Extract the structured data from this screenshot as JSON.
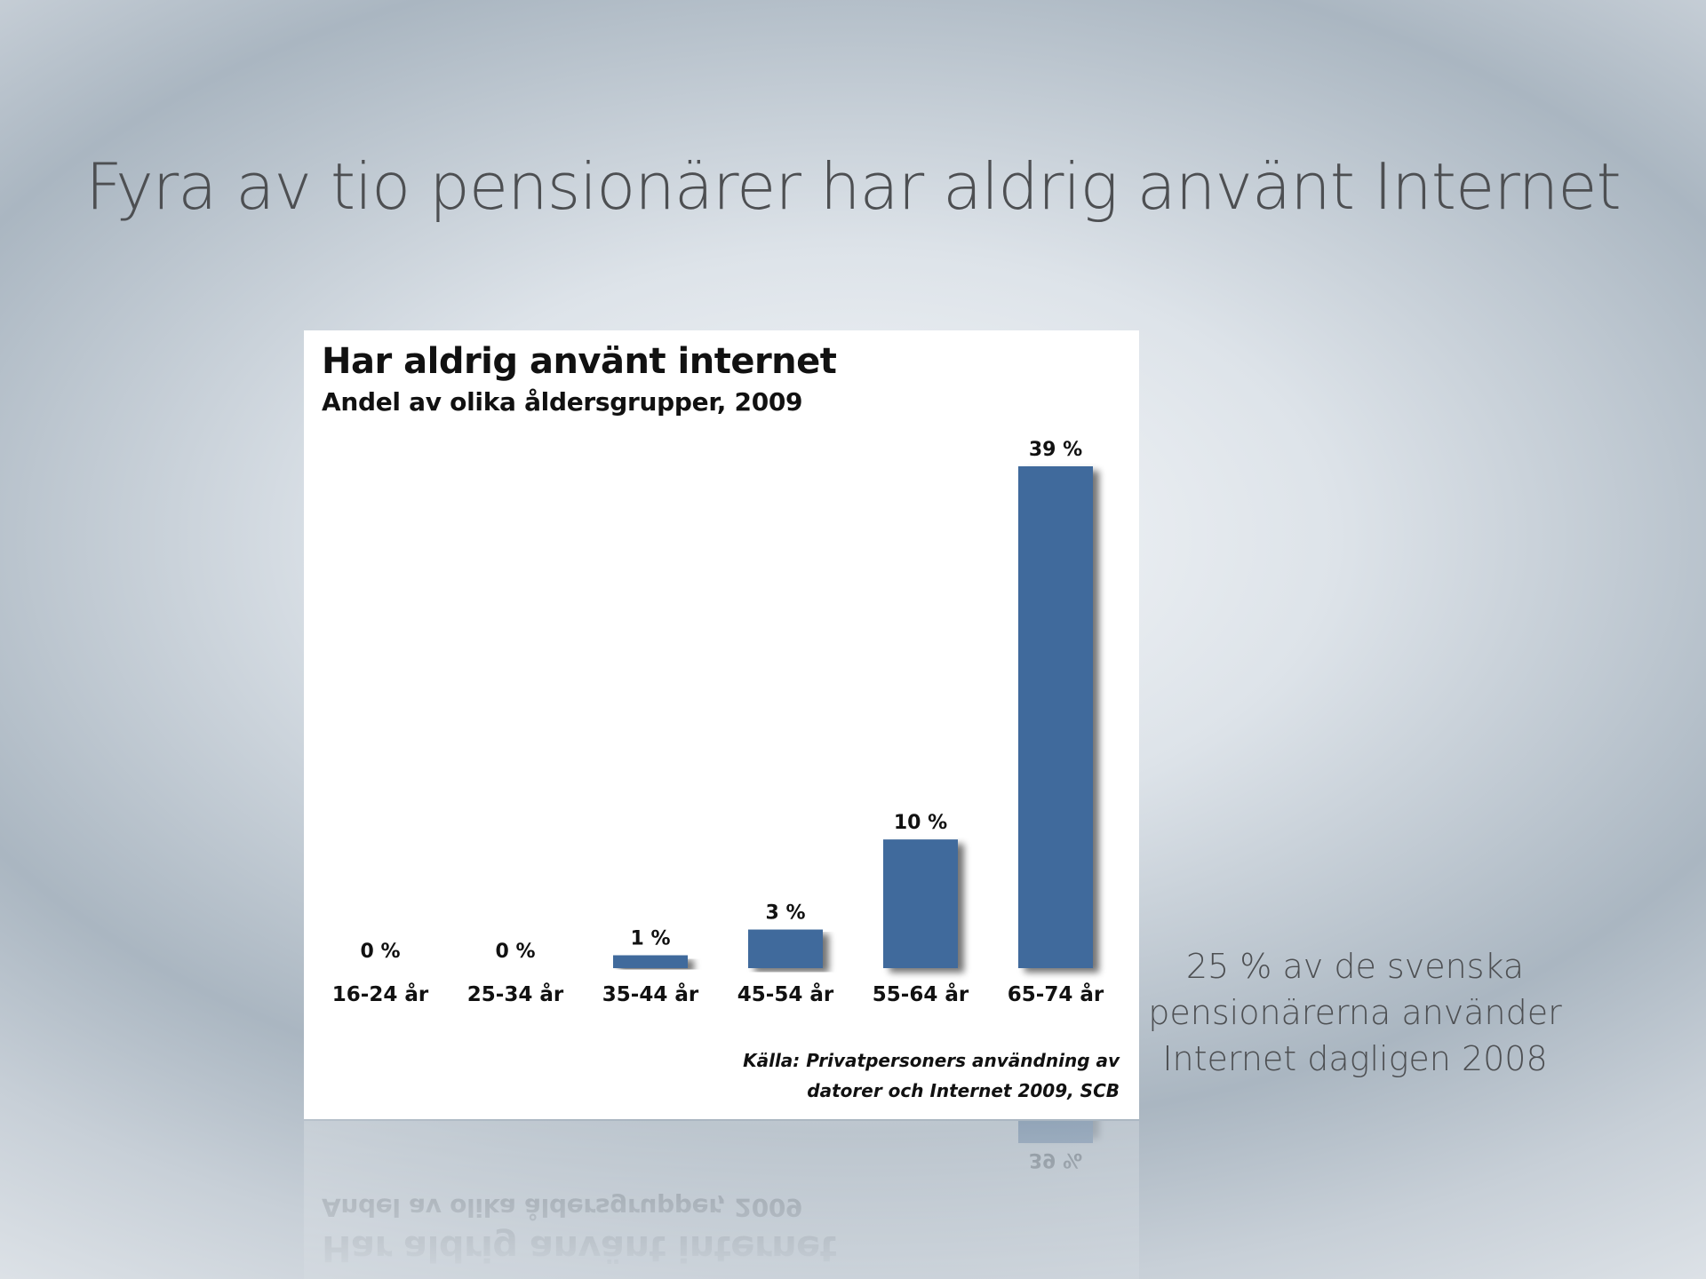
{
  "slide": {
    "title": "Fyra av tio pensionärer har aldrig använt Internet",
    "side_note": [
      "25 % av de svenska",
      "pensionärerna använder",
      "Internet dagligen 2008"
    ]
  },
  "chart": {
    "title": "Har aldrig använt internet",
    "subtitle": "Andel av olika åldersgrupper, 2009",
    "source_lines": [
      "Källa: Privatpersoners användning av",
      "datorer och Internet 2009, SCB"
    ]
  },
  "chart_data": {
    "type": "bar",
    "title": "Har aldrig använt internet",
    "subtitle": "Andel av olika åldersgrupper, 2009",
    "categories": [
      "16-24 år",
      "25-34 år",
      "35-44 år",
      "45-54 år",
      "55-64 år",
      "65-74 år"
    ],
    "values": [
      0,
      0,
      1,
      3,
      10,
      39
    ],
    "value_labels": [
      "0 %",
      "0 %",
      "1 %",
      "3 %",
      "10 %",
      "39 %"
    ],
    "unit": "%",
    "ylim": [
      0,
      39
    ],
    "grid": false,
    "legend": "none",
    "bar_color": "#3f6a9c"
  }
}
